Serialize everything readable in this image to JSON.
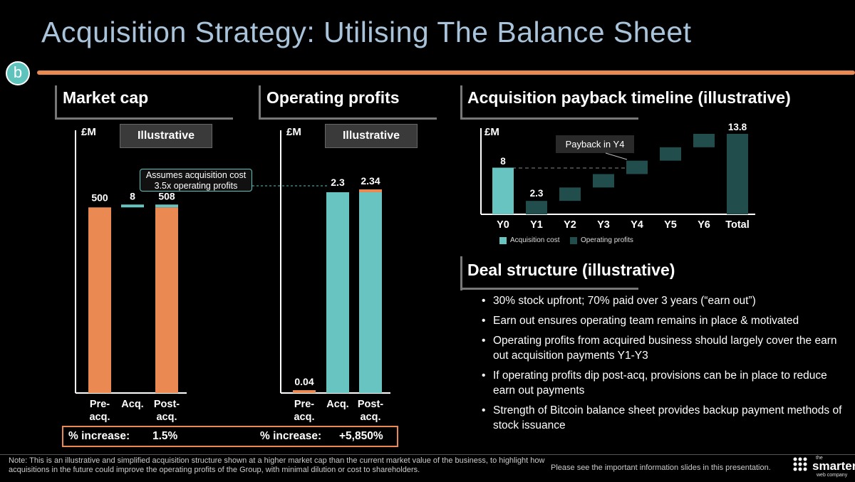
{
  "title": "Acquisition Strategy: Utilising The Balance Sheet",
  "badge": "b",
  "colors": {
    "orange": "#ea8a52",
    "teal": "#67c4c0",
    "dark_teal": "#214d4c",
    "title_blue": "#a9c4da"
  },
  "market_cap": {
    "title": "Market cap",
    "unit": "£M",
    "tag": "Illustrative",
    "callout_line1": "Assumes acquisition cost",
    "callout_line2": "3.5x operating profits",
    "pct_label": "% increase:",
    "pct_value": "1.5%"
  },
  "operating_profits": {
    "title": "Operating profits",
    "unit": "£M",
    "tag": "Illustrative",
    "pct_label": "% increase:",
    "pct_value": "+5,850%"
  },
  "payback": {
    "title": "Acquisition payback timeline (illustrative)",
    "unit": "£M",
    "callout": "Payback in Y4",
    "legend": [
      "Acquisition cost",
      "Operating profits"
    ]
  },
  "deal": {
    "title": "Deal structure (illustrative)",
    "bullets": [
      "30% stock upfront; 70% paid over 3 years (“earn out”)",
      "Earn out ensures operating team remains in place & motivated",
      "Operating profits from acquired business should largely cover the earn out acquisition payments Y1-Y3",
      "If operating profits dip post-acq, provisions can be in place to reduce earn out payments",
      "Strength of Bitcoin balance sheet provides backup payment methods of stock issuance"
    ]
  },
  "footer": {
    "note": "Note: This is an illustrative and simplified acquisition structure shown at a higher market cap than the current market value of the business, to highlight how acquisitions in the future could improve the operating profits of the Group, with minimal dilution or cost to shareholders.",
    "info": "Please see the important information slides in this presentation.",
    "logo_small": "the",
    "logo_main": "smarter",
    "logo_sub": "web company"
  },
  "chart_data": [
    {
      "type": "bar",
      "title": "Market cap",
      "ylabel": "£M",
      "categories": [
        "Pre-\nacq.",
        "Acq.",
        "Post-\nacq."
      ],
      "bars": [
        {
          "label": "500",
          "base": 0,
          "value": 500,
          "series": "market_cap"
        },
        {
          "label": "8",
          "base": 500,
          "value": 8,
          "series": "acquisition"
        },
        {
          "label": "508",
          "base": 0,
          "value": 500,
          "top": 8,
          "series": "market_cap"
        }
      ],
      "ylim": [
        0,
        560
      ]
    },
    {
      "type": "bar",
      "title": "Operating profits",
      "ylabel": "£M",
      "categories": [
        "Pre-\nacq.",
        "Acq.",
        "Post-\nacq."
      ],
      "bars": [
        {
          "label": "0.04",
          "base": 0,
          "value": 0.04,
          "series": "pre"
        },
        {
          "label": "2.3",
          "base": 0,
          "value": 2.3,
          "series": "acquisition"
        },
        {
          "label": "2.34",
          "base": 0,
          "value": 2.3,
          "top": 0.04,
          "series": "combined"
        }
      ],
      "ylim": [
        0,
        2.85
      ]
    },
    {
      "type": "bar",
      "title": "Acquisition payback timeline (illustrative)",
      "ylabel": "£M",
      "categories": [
        "Y0",
        "Y1",
        "Y2",
        "Y3",
        "Y4",
        "Y5",
        "Y6",
        "Total"
      ],
      "series": [
        {
          "name": "Acquisition cost",
          "values": [
            8,
            0,
            0,
            0,
            0,
            0,
            0,
            0
          ]
        },
        {
          "name": "Operating profits",
          "values": [
            0,
            2.3,
            2.3,
            2.3,
            2.3,
            2.3,
            2.3,
            13.8
          ]
        }
      ],
      "labels": {
        "Y0": "8",
        "Y1": "2.3",
        "Total": "13.8"
      },
      "ylim": [
        0,
        15
      ]
    }
  ]
}
